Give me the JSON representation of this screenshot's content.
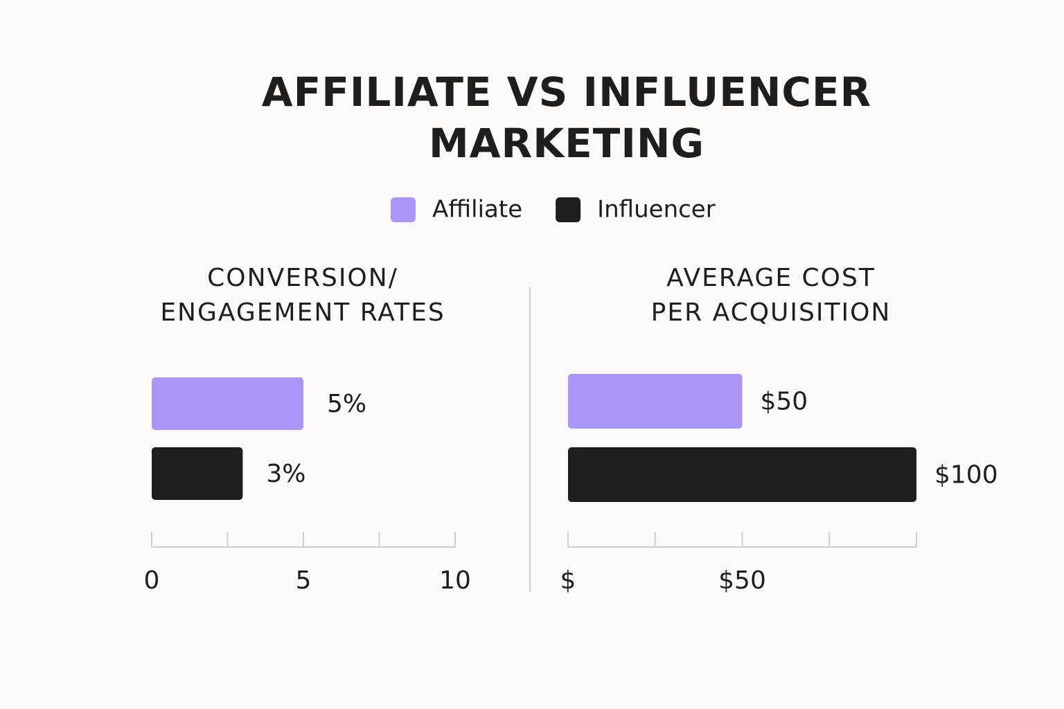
{
  "title": "AFFILIATE VS INFLUENCER\nMARKETING",
  "chart_data": [
    {
      "type": "bar",
      "orientation": "horizontal",
      "title": "CONVERSION/\nENGAGEMENT RATES",
      "xlim": [
        0,
        10
      ],
      "xticks": [
        0,
        5,
        10
      ],
      "minor_xticks": [
        2.5,
        7.5
      ],
      "series": [
        {
          "name": "Affiliate",
          "color": "#a996f7",
          "values": [
            5
          ],
          "value_labels": [
            "5%"
          ]
        },
        {
          "name": "Influencer",
          "color": "#1e1e1e",
          "values": [
            3
          ],
          "value_labels": [
            "3%"
          ]
        }
      ]
    },
    {
      "type": "bar",
      "orientation": "horizontal",
      "title": "AVERAGE COST\nPER ACQUISITION",
      "xlim": [
        0,
        100
      ],
      "xticks": [
        {
          "value": 0,
          "label": "$"
        },
        {
          "value": 50,
          "label": "$50"
        }
      ],
      "minor_xticks": [
        25,
        75,
        100
      ],
      "series": [
        {
          "name": "Affiliate",
          "color": "#a996f7",
          "values": [
            50
          ],
          "value_labels": [
            "$50"
          ]
        },
        {
          "name": "Influencer",
          "color": "#1e1e1e",
          "values": [
            100
          ],
          "value_labels": [
            "$100"
          ]
        }
      ]
    }
  ]
}
